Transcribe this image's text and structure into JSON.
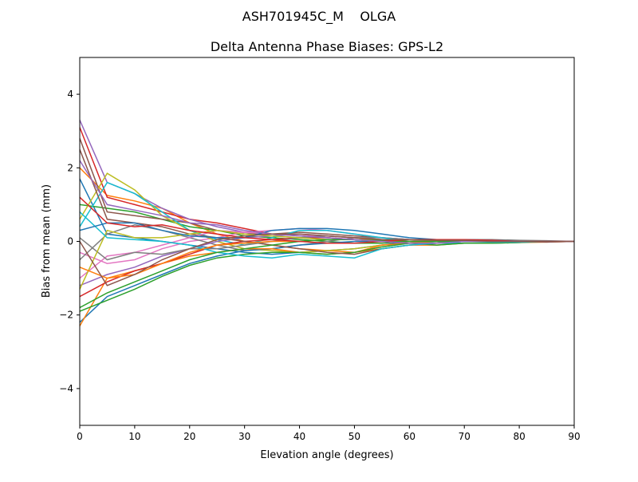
{
  "figure": {
    "suptitle": "ASH701945C_M    OLGA"
  },
  "chart_data": {
    "type": "line",
    "title": "Delta Antenna Phase Biases: GPS-L2",
    "xlabel": "Elevation angle (degrees)",
    "ylabel": "Bias from mean (mm)",
    "xlim": [
      0,
      90
    ],
    "ylim": [
      -5,
      5
    ],
    "xticks": [
      "0",
      "10",
      "20",
      "30",
      "40",
      "50",
      "60",
      "70",
      "80",
      "90"
    ],
    "yticks": [
      "−4",
      "−2",
      "0",
      "2",
      "4"
    ],
    "xtick_values": [
      0,
      10,
      20,
      30,
      40,
      50,
      60,
      70,
      80,
      90
    ],
    "ytick_values": [
      -4,
      -2,
      0,
      2,
      4
    ],
    "grid": false,
    "legend": "none",
    "palette": [
      "#1f77b4",
      "#ff7f0e",
      "#2ca02c",
      "#d62728",
      "#9467bd",
      "#8c564b",
      "#e377c2",
      "#7f7f7f",
      "#bcbd22",
      "#17becf"
    ],
    "x": [
      0,
      5,
      10,
      15,
      20,
      25,
      30,
      35,
      40,
      45,
      50,
      55,
      60,
      65,
      70,
      75,
      80,
      85,
      90
    ],
    "series": [
      {
        "values": [
          1.7,
          0.2,
          0.1,
          0,
          -0.1,
          -0.2,
          -0.3,
          -0.35,
          -0.3,
          -0.25,
          -0.2,
          -0.1,
          0,
          0.05,
          0.05,
          0.03,
          0,
          0,
          0
        ]
      },
      {
        "values": [
          2.0,
          1.25,
          1.1,
          0.9,
          0.5,
          0.2,
          0,
          -0.1,
          -0.2,
          -0.25,
          -0.3,
          -0.2,
          -0.1,
          -0.1,
          -0.05,
          -0.05,
          -0.03,
          -0.02,
          0
        ]
      },
      {
        "values": [
          1.0,
          0.9,
          0.8,
          0.6,
          0.4,
          0.3,
          0.15,
          0.1,
          0.05,
          0,
          -0.05,
          -0.05,
          0,
          0.05,
          0.05,
          0.02,
          0,
          0,
          0
        ]
      },
      {
        "values": [
          3.1,
          1.2,
          1.0,
          0.8,
          0.6,
          0.5,
          0.35,
          0.2,
          0.15,
          0.1,
          0.05,
          0,
          -0.05,
          0,
          0.02,
          0,
          -0.02,
          0,
          0
        ]
      },
      {
        "values": [
          3.3,
          1.6,
          1.3,
          0.9,
          0.6,
          0.4,
          0.25,
          0.15,
          0.1,
          0.05,
          0.05,
          0,
          0.05,
          0.05,
          0.03,
          0.02,
          0,
          0,
          0
        ]
      },
      {
        "values": [
          2.8,
          0.8,
          0.7,
          0.6,
          0.5,
          0.3,
          0.2,
          0.2,
          0.25,
          0.2,
          0.15,
          0.1,
          0.05,
          0.05,
          0.05,
          0.02,
          0,
          0,
          0
        ]
      },
      {
        "values": [
          -0.3,
          -0.6,
          -0.5,
          -0.2,
          0,
          0.1,
          0.25,
          0.3,
          0.35,
          0.3,
          0.2,
          0.1,
          0.05,
          0,
          0,
          0,
          0,
          0,
          0
        ]
      },
      {
        "values": [
          -0.5,
          0.2,
          0.45,
          0.3,
          0.1,
          -0.1,
          -0.25,
          -0.2,
          -0.1,
          0,
          0.1,
          0.1,
          0.05,
          0.05,
          0.05,
          0.05,
          0.03,
          0.02,
          0
        ]
      },
      {
        "values": [
          0.6,
          1.85,
          1.4,
          0.7,
          0.3,
          0,
          -0.2,
          -0.25,
          -0.3,
          -0.25,
          -0.2,
          -0.1,
          -0.05,
          0,
          0,
          0,
          0,
          0,
          0
        ]
      },
      {
        "values": [
          0.4,
          1.6,
          1.3,
          0.8,
          0.3,
          0.05,
          -0.1,
          0.1,
          0.3,
          0.3,
          0.2,
          0.1,
          0,
          -0.05,
          -0.05,
          -0.05,
          -0.03,
          0,
          0
        ]
      },
      {
        "values": [
          -2.2,
          -1.5,
          -1.2,
          -0.9,
          -0.6,
          -0.4,
          -0.25,
          -0.2,
          -0.1,
          -0.05,
          0,
          0,
          -0.05,
          -0.05,
          0,
          0,
          0,
          0,
          0
        ]
      },
      {
        "values": [
          -2.3,
          -1.0,
          -0.8,
          -0.6,
          -0.4,
          -0.3,
          -0.2,
          -0.2,
          -0.3,
          -0.35,
          -0.3,
          -0.1,
          -0.05,
          0,
          0,
          0,
          0,
          0,
          0
        ]
      },
      {
        "values": [
          -1.9,
          -1.6,
          -1.3,
          -0.95,
          -0.65,
          -0.45,
          -0.35,
          -0.3,
          -0.3,
          -0.35,
          -0.3,
          -0.15,
          -0.05,
          -0.1,
          -0.05,
          -0.05,
          -0.03,
          0,
          0
        ]
      },
      {
        "values": [
          -1.5,
          -1.1,
          -0.8,
          -0.6,
          -0.35,
          -0.1,
          0,
          0.05,
          0.1,
          0.1,
          0.05,
          0,
          0,
          0,
          0,
          0,
          0,
          0,
          0
        ]
      },
      {
        "values": [
          -1.2,
          -0.9,
          -0.7,
          -0.4,
          -0.2,
          0,
          0.1,
          0.15,
          0.2,
          0.15,
          0.1,
          0.05,
          0,
          0,
          0,
          0,
          0,
          0,
          0
        ]
      },
      {
        "values": [
          2.5,
          0.6,
          0.5,
          0.4,
          0.2,
          0.1,
          0,
          -0.1,
          -0.2,
          -0.3,
          -0.35,
          -0.2,
          -0.1,
          -0.05,
          0,
          0,
          0,
          -0.02,
          0
        ]
      },
      {
        "values": [
          -1.0,
          -0.4,
          -0.3,
          -0.1,
          0.1,
          0.3,
          0.25,
          0.2,
          0.2,
          0.1,
          0.05,
          0.05,
          0.05,
          0.05,
          0.05,
          0.02,
          0,
          0,
          0
        ]
      },
      {
        "values": [
          0.1,
          -0.5,
          -0.3,
          -0.35,
          -0.2,
          -0.2,
          -0.1,
          0,
          0.1,
          0.15,
          0.1,
          0.05,
          0,
          0,
          0,
          0,
          0,
          0,
          0
        ]
      },
      {
        "values": [
          -1.3,
          0.3,
          0.1,
          0.1,
          0.2,
          0.3,
          0.2,
          0.15,
          0.1,
          0.05,
          0.05,
          0,
          0,
          0,
          0,
          0,
          0,
          0,
          0
        ]
      },
      {
        "values": [
          0.8,
          0.1,
          0.05,
          0,
          -0.1,
          -0.3,
          -0.4,
          -0.45,
          -0.35,
          -0.4,
          -0.45,
          -0.2,
          -0.1,
          -0.05,
          0,
          -0.02,
          -0.02,
          0,
          0
        ]
      },
      {
        "values": [
          0.3,
          0.5,
          0.5,
          0.3,
          0.15,
          0.1,
          0.1,
          0.3,
          0.35,
          0.35,
          0.3,
          0.2,
          0.1,
          0.05,
          0.05,
          0.03,
          0,
          0,
          0
        ]
      },
      {
        "values": [
          -0.7,
          -1.0,
          -0.9,
          -0.6,
          -0.3,
          -0.1,
          -0.05,
          0,
          0,
          0.05,
          0.05,
          0.05,
          0.05,
          0.05,
          0.03,
          0.02,
          0,
          0,
          0
        ]
      },
      {
        "values": [
          -1.8,
          -1.4,
          -1.1,
          -0.8,
          -0.5,
          -0.3,
          -0.2,
          -0.1,
          0,
          0.05,
          0.05,
          0.02,
          0,
          0,
          0,
          0,
          0,
          0,
          0
        ]
      },
      {
        "values": [
          1.2,
          0.5,
          0.4,
          0.45,
          0.3,
          0.2,
          0.1,
          0.05,
          0,
          -0.05,
          -0.05,
          0,
          0.05,
          0.05,
          0.05,
          0.03,
          0,
          0,
          0
        ]
      },
      {
        "values": [
          2.2,
          1.0,
          0.85,
          0.7,
          0.5,
          0.45,
          0.3,
          0.2,
          0.15,
          0.1,
          0.05,
          0,
          -0.05,
          -0.05,
          0,
          0,
          0,
          0,
          0
        ]
      },
      {
        "values": [
          0.0,
          -1.2,
          -0.9,
          -0.5,
          -0.2,
          0.05,
          0.15,
          0.2,
          0.2,
          0.15,
          0.1,
          0.05,
          0.05,
          0.03,
          0.03,
          0,
          0,
          0,
          0
        ]
      }
    ]
  }
}
